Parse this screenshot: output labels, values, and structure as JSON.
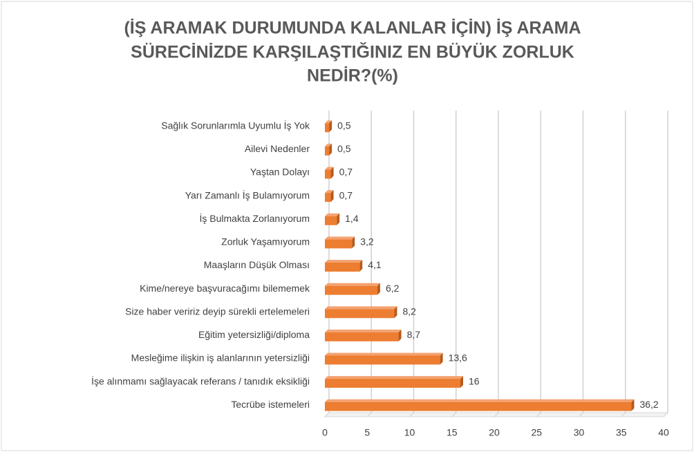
{
  "chart_data": {
    "type": "bar",
    "orientation": "horizontal",
    "title": [
      "(İŞ ARAMAK DURUMUNDA KALANLAR İÇİN) İŞ ARAMA",
      "SÜRECİNİZDE KARŞILAŞTIĞINIZ EN BÜYÜK ZORLUK",
      "NEDİR?(%)"
    ],
    "categories": [
      "Sağlık Sorunlarımla Uyumlu İş Yok",
      "Ailevi Nedenler",
      "Yaştan Dolayı",
      "Yarı Zamanlı İş Bulamıyorum",
      "İş Bulmakta Zorlanıyorum",
      "Zorluk Yaşamıyorum",
      "Maaşların Düşük Olması",
      "Kime/nereye başvuracağımı bilememek",
      "Size haber veririz deyip sürekli ertelemeleri",
      "Eğitim yetersizliği/diploma",
      "Mesleğime ilişkin iş alanlarının yetersizliği",
      "İşe alınmamı sağlayacak referans / tanıdık eksikliği",
      "Tecrübe istemeleri"
    ],
    "values": [
      0.5,
      0.5,
      0.7,
      0.7,
      1.4,
      3.2,
      4.1,
      6.2,
      8.2,
      8.7,
      13.6,
      16,
      36.2
    ],
    "value_labels": [
      "0,5",
      "0,5",
      "0,7",
      "0,7",
      "1,4",
      "3,2",
      "4,1",
      "6,2",
      "8,2",
      "8,7",
      "13,6",
      "16",
      "36,2"
    ],
    "color": "#ed7d31",
    "xlim": [
      0,
      40
    ],
    "xticks": [
      0,
      5,
      10,
      15,
      20,
      25,
      30,
      35,
      40
    ],
    "grid": true
  }
}
